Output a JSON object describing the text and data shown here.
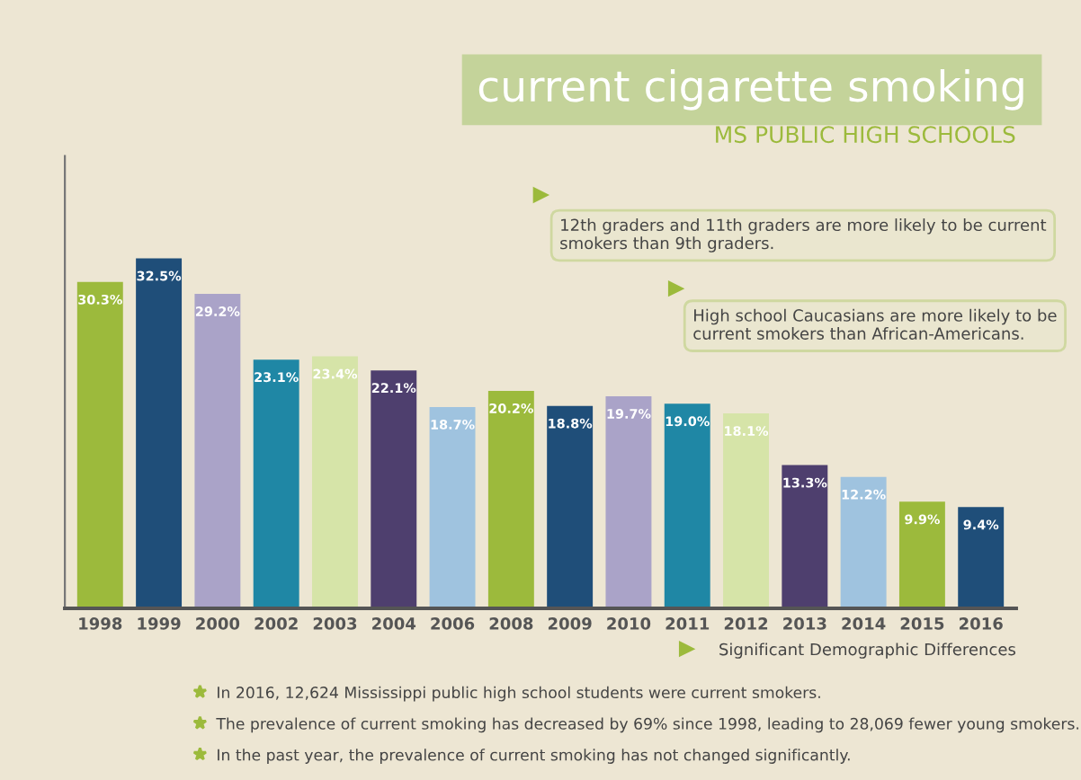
{
  "chart_data": {
    "type": "bar",
    "title": "current cigarette smoking",
    "subtitle": "MS PUBLIC HIGH SCHOOLS",
    "categories": [
      "1998",
      "1999",
      "2000",
      "2002",
      "2003",
      "2004",
      "2006",
      "2008",
      "2009",
      "2010",
      "2011",
      "2012",
      "2013",
      "2014",
      "2015",
      "2016"
    ],
    "values": [
      30.3,
      32.5,
      29.2,
      23.1,
      23.4,
      22.1,
      18.7,
      20.2,
      18.8,
      19.7,
      19.0,
      18.1,
      13.3,
      12.2,
      9.9,
      9.4
    ],
    "value_labels": [
      "30.3%",
      "32.5%",
      "29.2%",
      "23.1%",
      "23.4%",
      "22.1%",
      "18.7%",
      "20.2%",
      "18.8%",
      "19.7%",
      "19.0%",
      "18.1%",
      "13.3%",
      "12.2%",
      "9.9%",
      "9.4%"
    ],
    "colors": [
      "#9cba3c",
      "#1f4e79",
      "#aaa3c8",
      "#1f87a5",
      "#d6e4a8",
      "#4e3f6e",
      "#9fc3df",
      "#9cba3c",
      "#1f4e79",
      "#aaa3c8",
      "#1f87a5",
      "#d6e4a8",
      "#4e3f6e",
      "#9fc3df",
      "#9cba3c",
      "#1f4e79"
    ],
    "ylim": [
      0,
      42
    ],
    "tick_labels": "x",
    "grid": false,
    "annotations": [
      "12th graders and 11th graders are more likely to be current smokers than 9th graders.",
      "High school Caucasians are more likely to be current smokers than African-Americans.",
      "Significant Demographic Differences",
      "In 2016, 12,624 Mississippi public high school students were current smokers.",
      "The prevalence of current smoking has decreased by 69% since 1998, leading to 28,069 fewer young smokers.",
      "In the past year, the prevalence of current smoking has not changed significantly."
    ]
  }
}
